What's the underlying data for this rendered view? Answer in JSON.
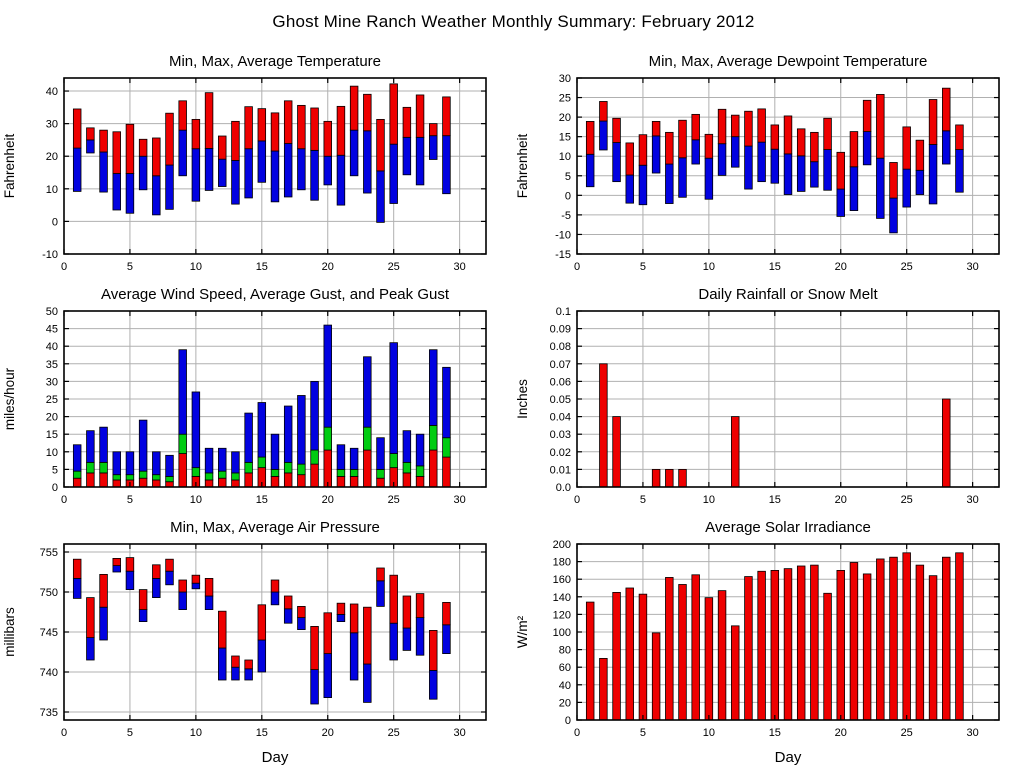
{
  "page": {
    "title": "Ghost Mine Ranch Weather Monthly Summary: February 2012"
  },
  "colors": {
    "red": "#ee0000",
    "blue": "#0202e0",
    "green": "#00cc11",
    "grid": "#b0b0b0",
    "axis": "#000000",
    "background": "#ffffff"
  },
  "days": [
    1,
    2,
    3,
    4,
    5,
    6,
    7,
    8,
    9,
    10,
    11,
    12,
    13,
    14,
    15,
    16,
    17,
    18,
    19,
    20,
    21,
    22,
    23,
    24,
    25,
    26,
    27,
    28,
    29
  ],
  "chart_data": [
    {
      "id": "temperature",
      "type": "range-bar",
      "title": "Min, Max, Average Temperature",
      "ylabel": "Fahrenheit",
      "xlabel": "",
      "ylim": [
        -10,
        44
      ],
      "yticks": [
        -10,
        0,
        10,
        20,
        30,
        40
      ],
      "xlim": [
        0,
        32
      ],
      "xticks": [
        0,
        5,
        10,
        15,
        20,
        25,
        30
      ],
      "grid": true,
      "series": {
        "min": [
          9.2,
          21,
          9,
          3.5,
          2.5,
          9.7,
          2,
          3.7,
          14,
          6.2,
          9.5,
          10.7,
          5.3,
          7.2,
          12,
          6,
          7.5,
          9.7,
          6.5,
          11.2,
          5,
          14,
          8.7,
          -0.3,
          5.5,
          14.3,
          11.2,
          19,
          8.5
        ],
        "average": [
          22.5,
          25,
          21.3,
          14.7,
          14.7,
          20,
          14,
          17.3,
          28,
          22.3,
          22.4,
          19.1,
          18.7,
          22.3,
          24.7,
          21.6,
          23.9,
          22.3,
          21.8,
          20,
          20.3,
          28,
          27.8,
          15.5,
          23.7,
          25.8,
          25.8,
          26.3,
          26.3
        ],
        "max": [
          34.5,
          28.7,
          28,
          27.5,
          29.8,
          25.2,
          25.6,
          33.2,
          37,
          31.3,
          39.5,
          26.2,
          30.7,
          35.2,
          34.6,
          33.3,
          37,
          35.6,
          34.8,
          30.7,
          35.3,
          41.5,
          39,
          31.3,
          42.2,
          35,
          38.8,
          30,
          38.2
        ]
      },
      "segment_colors": {
        "min_to_avg": "blue",
        "avg_to_max": "red"
      }
    },
    {
      "id": "dewpoint",
      "type": "range-bar",
      "title": "Min, Max, Average Dewpoint Temperature",
      "ylabel": "Fahrenheit",
      "xlabel": "",
      "ylim": [
        -15,
        30
      ],
      "yticks": [
        -15,
        -10,
        -5,
        0,
        5,
        10,
        15,
        20,
        25,
        30
      ],
      "xlim": [
        0,
        32
      ],
      "xticks": [
        0,
        5,
        10,
        15,
        20,
        25,
        30
      ],
      "grid": true,
      "series": {
        "min": [
          2.2,
          11.6,
          3.5,
          -2,
          -2.4,
          5.7,
          -2.1,
          -0.5,
          8,
          -1,
          5.1,
          7.2,
          1.6,
          3.5,
          3.1,
          0.2,
          1,
          2.1,
          1.3,
          -5.4,
          -3.9,
          7.8,
          -5.9,
          -9.6,
          -3,
          0.2,
          -2.2,
          8,
          0.8
        ],
        "average": [
          10.5,
          19,
          13.5,
          5.2,
          7.7,
          15.2,
          8,
          9.6,
          14.2,
          9.5,
          13.2,
          15,
          12.6,
          13.6,
          11.8,
          10.6,
          10.1,
          8.6,
          11.7,
          1.6,
          7.3,
          16.3,
          9.5,
          -0.7,
          6.7,
          6.4,
          13,
          16.5,
          11.7
        ],
        "max": [
          18.9,
          24,
          19.7,
          13.4,
          15.5,
          18.9,
          16.1,
          19.2,
          20.7,
          15.6,
          22,
          20.5,
          21.5,
          22.1,
          18,
          20.3,
          17,
          16.1,
          19.7,
          11,
          16.3,
          24.3,
          25.8,
          8.4,
          17.5,
          14.1,
          24.5,
          27.4,
          18
        ]
      },
      "segment_colors": {
        "min_to_avg": "blue",
        "avg_to_max": "red"
      }
    },
    {
      "id": "wind",
      "type": "stacked-bar",
      "title": "Average Wind Speed, Average Gust, and Peak Gust",
      "ylabel": "miles/hour",
      "xlabel": "",
      "ylim": [
        0,
        50
      ],
      "yticks": [
        0,
        5,
        10,
        15,
        20,
        25,
        30,
        35,
        40,
        45,
        50
      ],
      "xlim": [
        0,
        32
      ],
      "xticks": [
        0,
        5,
        10,
        15,
        20,
        25,
        30
      ],
      "grid": true,
      "series": [
        {
          "name": "Average Wind Speed",
          "color": "red",
          "tops": [
            2.5,
            4,
            4,
            2,
            2,
            2.5,
            2,
            1.5,
            9.5,
            3,
            2,
            2.5,
            2,
            4,
            5.5,
            3,
            4,
            3.5,
            6.5,
            10.5,
            3,
            3,
            10.5,
            2.5,
            5.5,
            4,
            3,
            10.5,
            8.5
          ]
        },
        {
          "name": "Average Gust",
          "color": "green",
          "tops": [
            4.5,
            7,
            7,
            3.5,
            3.5,
            4.5,
            3.5,
            3,
            15,
            5.5,
            4,
            4.5,
            4,
            7,
            8.5,
            5,
            7,
            6.5,
            10.5,
            17,
            5,
            5,
            17,
            5,
            9.5,
            7,
            6,
            17.5,
            14
          ]
        },
        {
          "name": "Peak Gust",
          "color": "blue",
          "tops": [
            12,
            16,
            17,
            10,
            10,
            19,
            10,
            9,
            39,
            27,
            11,
            11,
            10,
            21,
            24,
            15,
            23,
            26,
            30,
            46,
            12,
            11,
            37,
            14,
            41,
            16,
            15,
            39,
            34
          ]
        }
      ]
    },
    {
      "id": "rainfall",
      "type": "bar",
      "title": "Daily Rainfall or Snow Melt",
      "ylabel": "Inches",
      "xlabel": "",
      "ylim": [
        0,
        0.1
      ],
      "yticks": [
        0,
        0.01,
        0.02,
        0.03,
        0.04,
        0.05,
        0.06,
        0.07,
        0.08,
        0.09,
        0.1
      ],
      "ytick_labels": [
        "0.0",
        "0.01",
        "0.02",
        "0.03",
        "0.04",
        "0.05",
        "0.06",
        "0.07",
        "0.08",
        "0.09",
        "0.1"
      ],
      "xlim": [
        0,
        32
      ],
      "xticks": [
        0,
        5,
        10,
        15,
        20,
        25,
        30
      ],
      "grid": true,
      "color": "red",
      "values": [
        0,
        0.07,
        0.04,
        0,
        0,
        0.01,
        0.01,
        0.01,
        0,
        0,
        0,
        0.04,
        0,
        0,
        0,
        0,
        0,
        0,
        0,
        0,
        0,
        0,
        0,
        0,
        0,
        0,
        0,
        0.05,
        0
      ]
    },
    {
      "id": "pressure",
      "type": "range-bar",
      "title": "Min, Max, Average Air Pressure",
      "ylabel": "millibars",
      "xlabel": "Day",
      "ylim": [
        734,
        756
      ],
      "yticks": [
        735,
        740,
        745,
        750,
        755
      ],
      "xlim": [
        0,
        32
      ],
      "xticks": [
        0,
        5,
        10,
        15,
        20,
        25,
        30
      ],
      "grid": true,
      "series": {
        "min": [
          749.2,
          741.5,
          744,
          752.5,
          750.3,
          746.3,
          749.3,
          750.9,
          747.8,
          750.4,
          747.8,
          739,
          739,
          739,
          740,
          748.4,
          746.1,
          745.3,
          736,
          736.8,
          746.3,
          739,
          736.2,
          748.2,
          741.5,
          742.7,
          742.1,
          736.6,
          742.3
        ],
        "average": [
          751.7,
          744.3,
          748.1,
          753.3,
          752.6,
          747.8,
          751.7,
          752.6,
          750,
          751.1,
          749.5,
          743,
          740.6,
          740.4,
          744,
          750,
          747.9,
          746.8,
          740.3,
          742.3,
          747.2,
          744.9,
          741,
          751.4,
          746.1,
          745.5,
          746.8,
          740.2,
          745.9
        ],
        "max": [
          754.1,
          749.3,
          752.2,
          754.2,
          754.3,
          750.3,
          753.4,
          754.1,
          751.5,
          752.1,
          751.7,
          747.6,
          742,
          741.5,
          748.4,
          751.5,
          749.5,
          748.2,
          745.7,
          747.4,
          748.6,
          748.5,
          748.1,
          753,
          752.1,
          749.5,
          749.8,
          745.2,
          748.7
        ]
      },
      "segment_colors": {
        "min_to_avg": "blue",
        "avg_to_max": "red"
      }
    },
    {
      "id": "solar",
      "type": "bar",
      "title": "Average Solar Irradiance",
      "ylabel": "W/m²",
      "xlabel": "Day",
      "ylim": [
        0,
        200
      ],
      "yticks": [
        0,
        20,
        40,
        60,
        80,
        100,
        120,
        140,
        160,
        180,
        200
      ],
      "xlim": [
        0,
        32
      ],
      "xticks": [
        0,
        5,
        10,
        15,
        20,
        25,
        30
      ],
      "grid": true,
      "color": "red",
      "values": [
        134,
        70,
        145,
        150,
        143,
        99,
        162,
        154,
        165,
        139,
        147,
        107,
        163,
        169,
        170,
        172,
        175,
        176,
        144,
        170,
        179,
        166,
        183,
        185,
        190,
        176,
        164,
        185,
        190
      ]
    }
  ]
}
